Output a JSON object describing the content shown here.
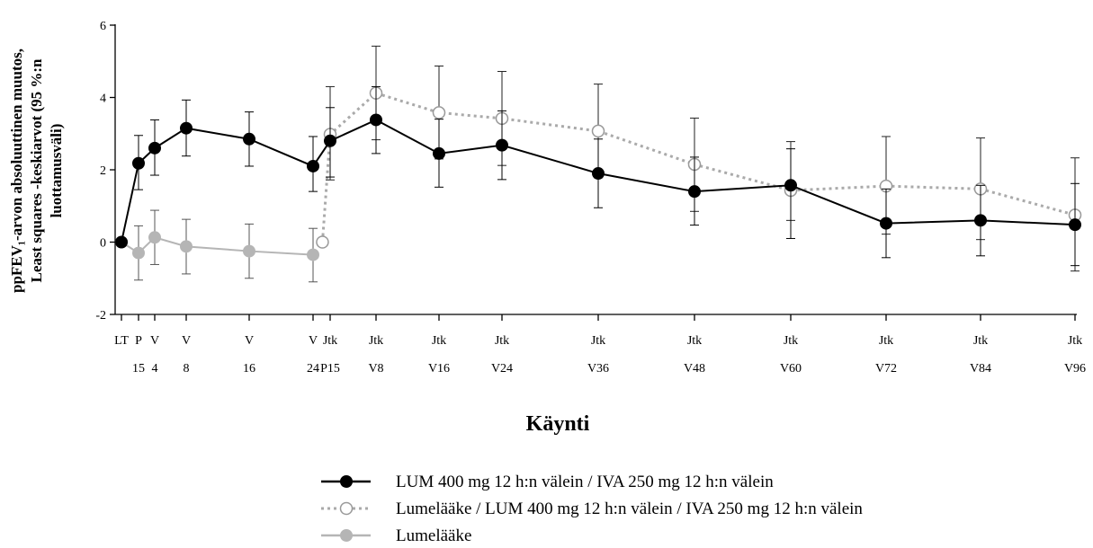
{
  "chart_data": {
    "type": "line",
    "ylabel_lines": [
      "ppFEV₁-arvon absoluuttinen muutos,",
      "Least squares -keskiarvot (95 %:n",
      "luottamusväli)"
    ],
    "xlabel": "Käynti",
    "ylim": [
      -2,
      6
    ],
    "yticks": [
      -2,
      0,
      2,
      4,
      6
    ],
    "x_categories": [
      {
        "top": "LT",
        "bottom": ""
      },
      {
        "top": "P",
        "bottom": "15"
      },
      {
        "top": "V",
        "bottom": "4"
      },
      {
        "top": "V",
        "bottom": "8"
      },
      {
        "top": "V",
        "bottom": "16"
      },
      {
        "top": "V",
        "bottom": "24"
      },
      {
        "top": "Jtk",
        "bottom": "P15"
      },
      {
        "top": "Jtk",
        "bottom": "V8"
      },
      {
        "top": "Jtk",
        "bottom": "V16"
      },
      {
        "top": "Jtk",
        "bottom": "V24"
      },
      {
        "top": "Jtk",
        "bottom": "V36"
      },
      {
        "top": "Jtk",
        "bottom": "V48"
      },
      {
        "top": "Jtk",
        "bottom": "V60"
      },
      {
        "top": "Jtk",
        "bottom": "V72"
      },
      {
        "top": "Jtk",
        "bottom": "V84"
      },
      {
        "top": "Jtk",
        "bottom": "V96"
      }
    ],
    "series": [
      {
        "name": "LUM 400 mg 12 h:n välein / IVA 250 mg 12 h:n välein",
        "color": "#000000",
        "line_style": "solid",
        "marker": "filled",
        "points": [
          {
            "x": 0,
            "y": 0.0,
            "lo": null,
            "hi": null
          },
          {
            "x": 1,
            "y": 2.18,
            "lo": 1.45,
            "hi": 2.95
          },
          {
            "x": 2,
            "y": 2.6,
            "lo": 1.85,
            "hi": 3.38
          },
          {
            "x": 3,
            "y": 3.15,
            "lo": 2.38,
            "hi": 3.93
          },
          {
            "x": 4,
            "y": 2.85,
            "lo": 2.1,
            "hi": 3.6
          },
          {
            "x": 5,
            "y": 2.1,
            "lo": 1.4,
            "hi": 2.92
          },
          {
            "x": 6,
            "y": 2.8,
            "lo": 1.8,
            "hi": 3.72
          },
          {
            "x": 7,
            "y": 3.38,
            "lo": 2.45,
            "hi": 4.3
          },
          {
            "x": 8,
            "y": 2.45,
            "lo": 1.52,
            "hi": 3.4
          },
          {
            "x": 9,
            "y": 2.68,
            "lo": 1.73,
            "hi": 3.63
          },
          {
            "x": 10,
            "y": 1.9,
            "lo": 0.95,
            "hi": 2.85
          },
          {
            "x": 11,
            "y": 1.4,
            "lo": 0.47,
            "hi": 2.35
          },
          {
            "x": 12,
            "y": 1.57,
            "lo": 0.1,
            "hi": 2.58
          },
          {
            "x": 13,
            "y": 0.52,
            "lo": -0.43,
            "hi": 1.47
          },
          {
            "x": 14,
            "y": 0.6,
            "lo": -0.38,
            "hi": 1.57
          },
          {
            "x": 15,
            "y": 0.48,
            "lo": -0.65,
            "hi": 1.62
          }
        ]
      },
      {
        "name": "Lumelääke / LUM 400 mg 12 h:n välein / IVA 250 mg 12 h:n välein",
        "color": "#aaaaaa",
        "line_style": "dotted",
        "marker": "open",
        "points": [
          {
            "x": 5.55,
            "y": 0.0,
            "lo": null,
            "hi": null
          },
          {
            "x": 6,
            "y": 2.98,
            "lo": 1.72,
            "hi": 4.3
          },
          {
            "x": 7,
            "y": 4.12,
            "lo": 2.83,
            "hi": 5.42
          },
          {
            "x": 8,
            "y": 3.58,
            "lo": 2.3,
            "hi": 4.87
          },
          {
            "x": 9,
            "y": 3.42,
            "lo": 2.12,
            "hi": 4.72
          },
          {
            "x": 10,
            "y": 3.07,
            "lo": 1.78,
            "hi": 4.37
          },
          {
            "x": 11,
            "y": 2.15,
            "lo": 0.85,
            "hi": 3.43
          },
          {
            "x": 12,
            "y": 1.43,
            "lo": 0.6,
            "hi": 2.78
          },
          {
            "x": 13,
            "y": 1.55,
            "lo": 0.22,
            "hi": 2.92
          },
          {
            "x": 14,
            "y": 1.47,
            "lo": 0.07,
            "hi": 2.88
          },
          {
            "x": 15,
            "y": 0.75,
            "lo": -0.8,
            "hi": 2.33
          }
        ]
      },
      {
        "name": "Lumelääke",
        "color": "#b5b5b5",
        "line_style": "solid",
        "marker": "filled",
        "points": [
          {
            "x": 0,
            "y": 0.0,
            "lo": null,
            "hi": null
          },
          {
            "x": 1,
            "y": -0.3,
            "lo": -1.05,
            "hi": 0.45
          },
          {
            "x": 2,
            "y": 0.13,
            "lo": -0.62,
            "hi": 0.88
          },
          {
            "x": 3,
            "y": -0.12,
            "lo": -0.88,
            "hi": 0.63
          },
          {
            "x": 4,
            "y": -0.25,
            "lo": -1.0,
            "hi": 0.5
          },
          {
            "x": 5,
            "y": -0.35,
            "lo": -1.1,
            "hi": 0.38
          }
        ]
      }
    ],
    "grid": false,
    "legend_position": "bottom-center"
  }
}
